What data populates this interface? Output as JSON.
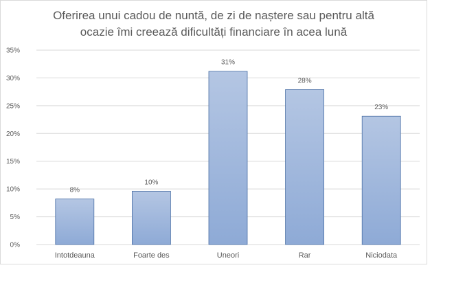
{
  "chart_data": {
    "type": "bar",
    "title_lines": [
      "Oferirea unui cadou de nuntă, de zi de naștere sau pentru altă",
      "ocazie îmi creează dificultăți  financiare în acea lună"
    ],
    "categories": [
      "Intotdeauna",
      "Foarte des",
      "Uneori",
      "Rar",
      "Niciodata"
    ],
    "values": [
      8,
      10,
      31,
      28,
      23
    ],
    "chart_values": [
      8.2,
      9.6,
      31.2,
      27.9,
      23.1
    ],
    "data_labels": [
      "8%",
      "10%",
      "31%",
      "28%",
      "23%"
    ],
    "ylim": [
      0,
      35
    ],
    "yticks": [
      0,
      5,
      10,
      15,
      20,
      25,
      30,
      35
    ],
    "ytick_labels": [
      "0%",
      "5%",
      "10%",
      "15%",
      "20%",
      "25%",
      "30%",
      "35%"
    ],
    "grid": true,
    "bar_color": "#8eaad6",
    "bar_color_top": "#b4c6e3",
    "bar_edge": "#4a6fa5",
    "grid_color": "#d9d9d9",
    "text_color": "#595959"
  }
}
